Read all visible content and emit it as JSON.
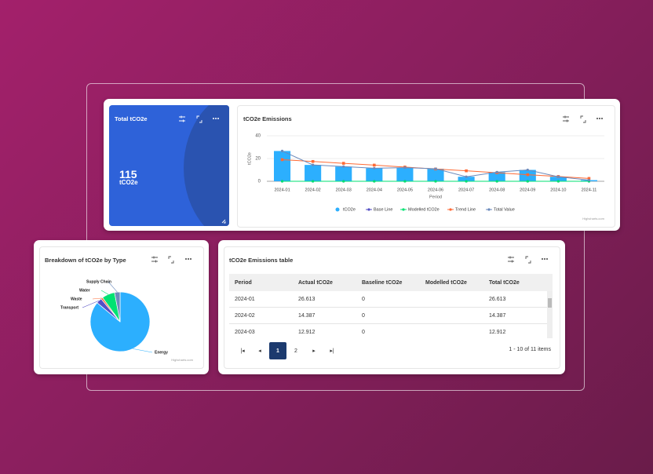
{
  "kpi": {
    "title": "Total tCO2e",
    "value": 115,
    "unit": "tCO2e"
  },
  "emissions_chart": {
    "type": "bar",
    "title": "tCO2e Emissions",
    "x_label": "Period",
    "y_label": "tCO2e",
    "categories": [
      "2024-01",
      "2024-02",
      "2024-03",
      "2024-04",
      "2024-05",
      "2024-06",
      "2024-07",
      "2024-08",
      "2024-09",
      "2024-10",
      "2024-11"
    ],
    "ylim": [
      0,
      40
    ],
    "yticks": [
      0,
      20,
      40
    ],
    "series": [
      {
        "name": "tCO2e",
        "kind": "column",
        "color": "#2caffe",
        "values": [
          26.613,
          14.387,
          12.912,
          11.5,
          12,
          11,
          4,
          8,
          10,
          4,
          1
        ]
      },
      {
        "name": "Base Line",
        "kind": "line",
        "color": "#544fc5",
        "values": [
          0,
          0,
          0,
          0,
          0,
          0,
          0,
          0,
          0,
          0,
          0
        ]
      },
      {
        "name": "Modelled tCO2e",
        "kind": "line",
        "color": "#00e272",
        "values": [
          0,
          0,
          0,
          0,
          0,
          0,
          0,
          0,
          0,
          0,
          0
        ]
      },
      {
        "name": "Trend Line",
        "kind": "line",
        "color": "#fe6a35",
        "values": [
          19,
          17.4,
          15.8,
          14.2,
          12.5,
          10.8,
          9.2,
          7.5,
          5.8,
          4.2,
          2.5
        ]
      },
      {
        "name": "Total Value",
        "kind": "line",
        "color": "#6b8abc",
        "values": [
          26.613,
          14.387,
          12.912,
          11.5,
          12,
          11,
          4,
          8,
          10,
          4,
          1
        ]
      }
    ],
    "credit": "Highcharts.com"
  },
  "breakdown_chart": {
    "type": "pie",
    "title": "Breakdown of tCO2e by Type",
    "categories": [
      "Energy",
      "Transport",
      "Waste",
      "Water",
      "Supply Chain"
    ],
    "values": [
      86,
      3,
      1,
      7,
      3
    ],
    "colors": [
      "#2caffe",
      "#544fc5",
      "#fe6a35",
      "#00e272",
      "#6b8abc"
    ],
    "credit": "Highcharts.com"
  },
  "table": {
    "title": "tCO2e Emissions table",
    "columns": [
      "Period",
      "Actual tCO2e",
      "Baseline tCO2e",
      "Modelled tCO2e",
      "Total tCO2e"
    ],
    "rows": [
      [
        "2024-01",
        26.613,
        0,
        null,
        26.613
      ],
      [
        "2024-02",
        14.387,
        0,
        null,
        14.387
      ],
      [
        "2024-03",
        12.912,
        0,
        null,
        12.912
      ]
    ]
  },
  "pagination": {
    "pages": [
      1,
      2
    ],
    "current": 1,
    "summary": "1 - 10 of 11 items"
  }
}
